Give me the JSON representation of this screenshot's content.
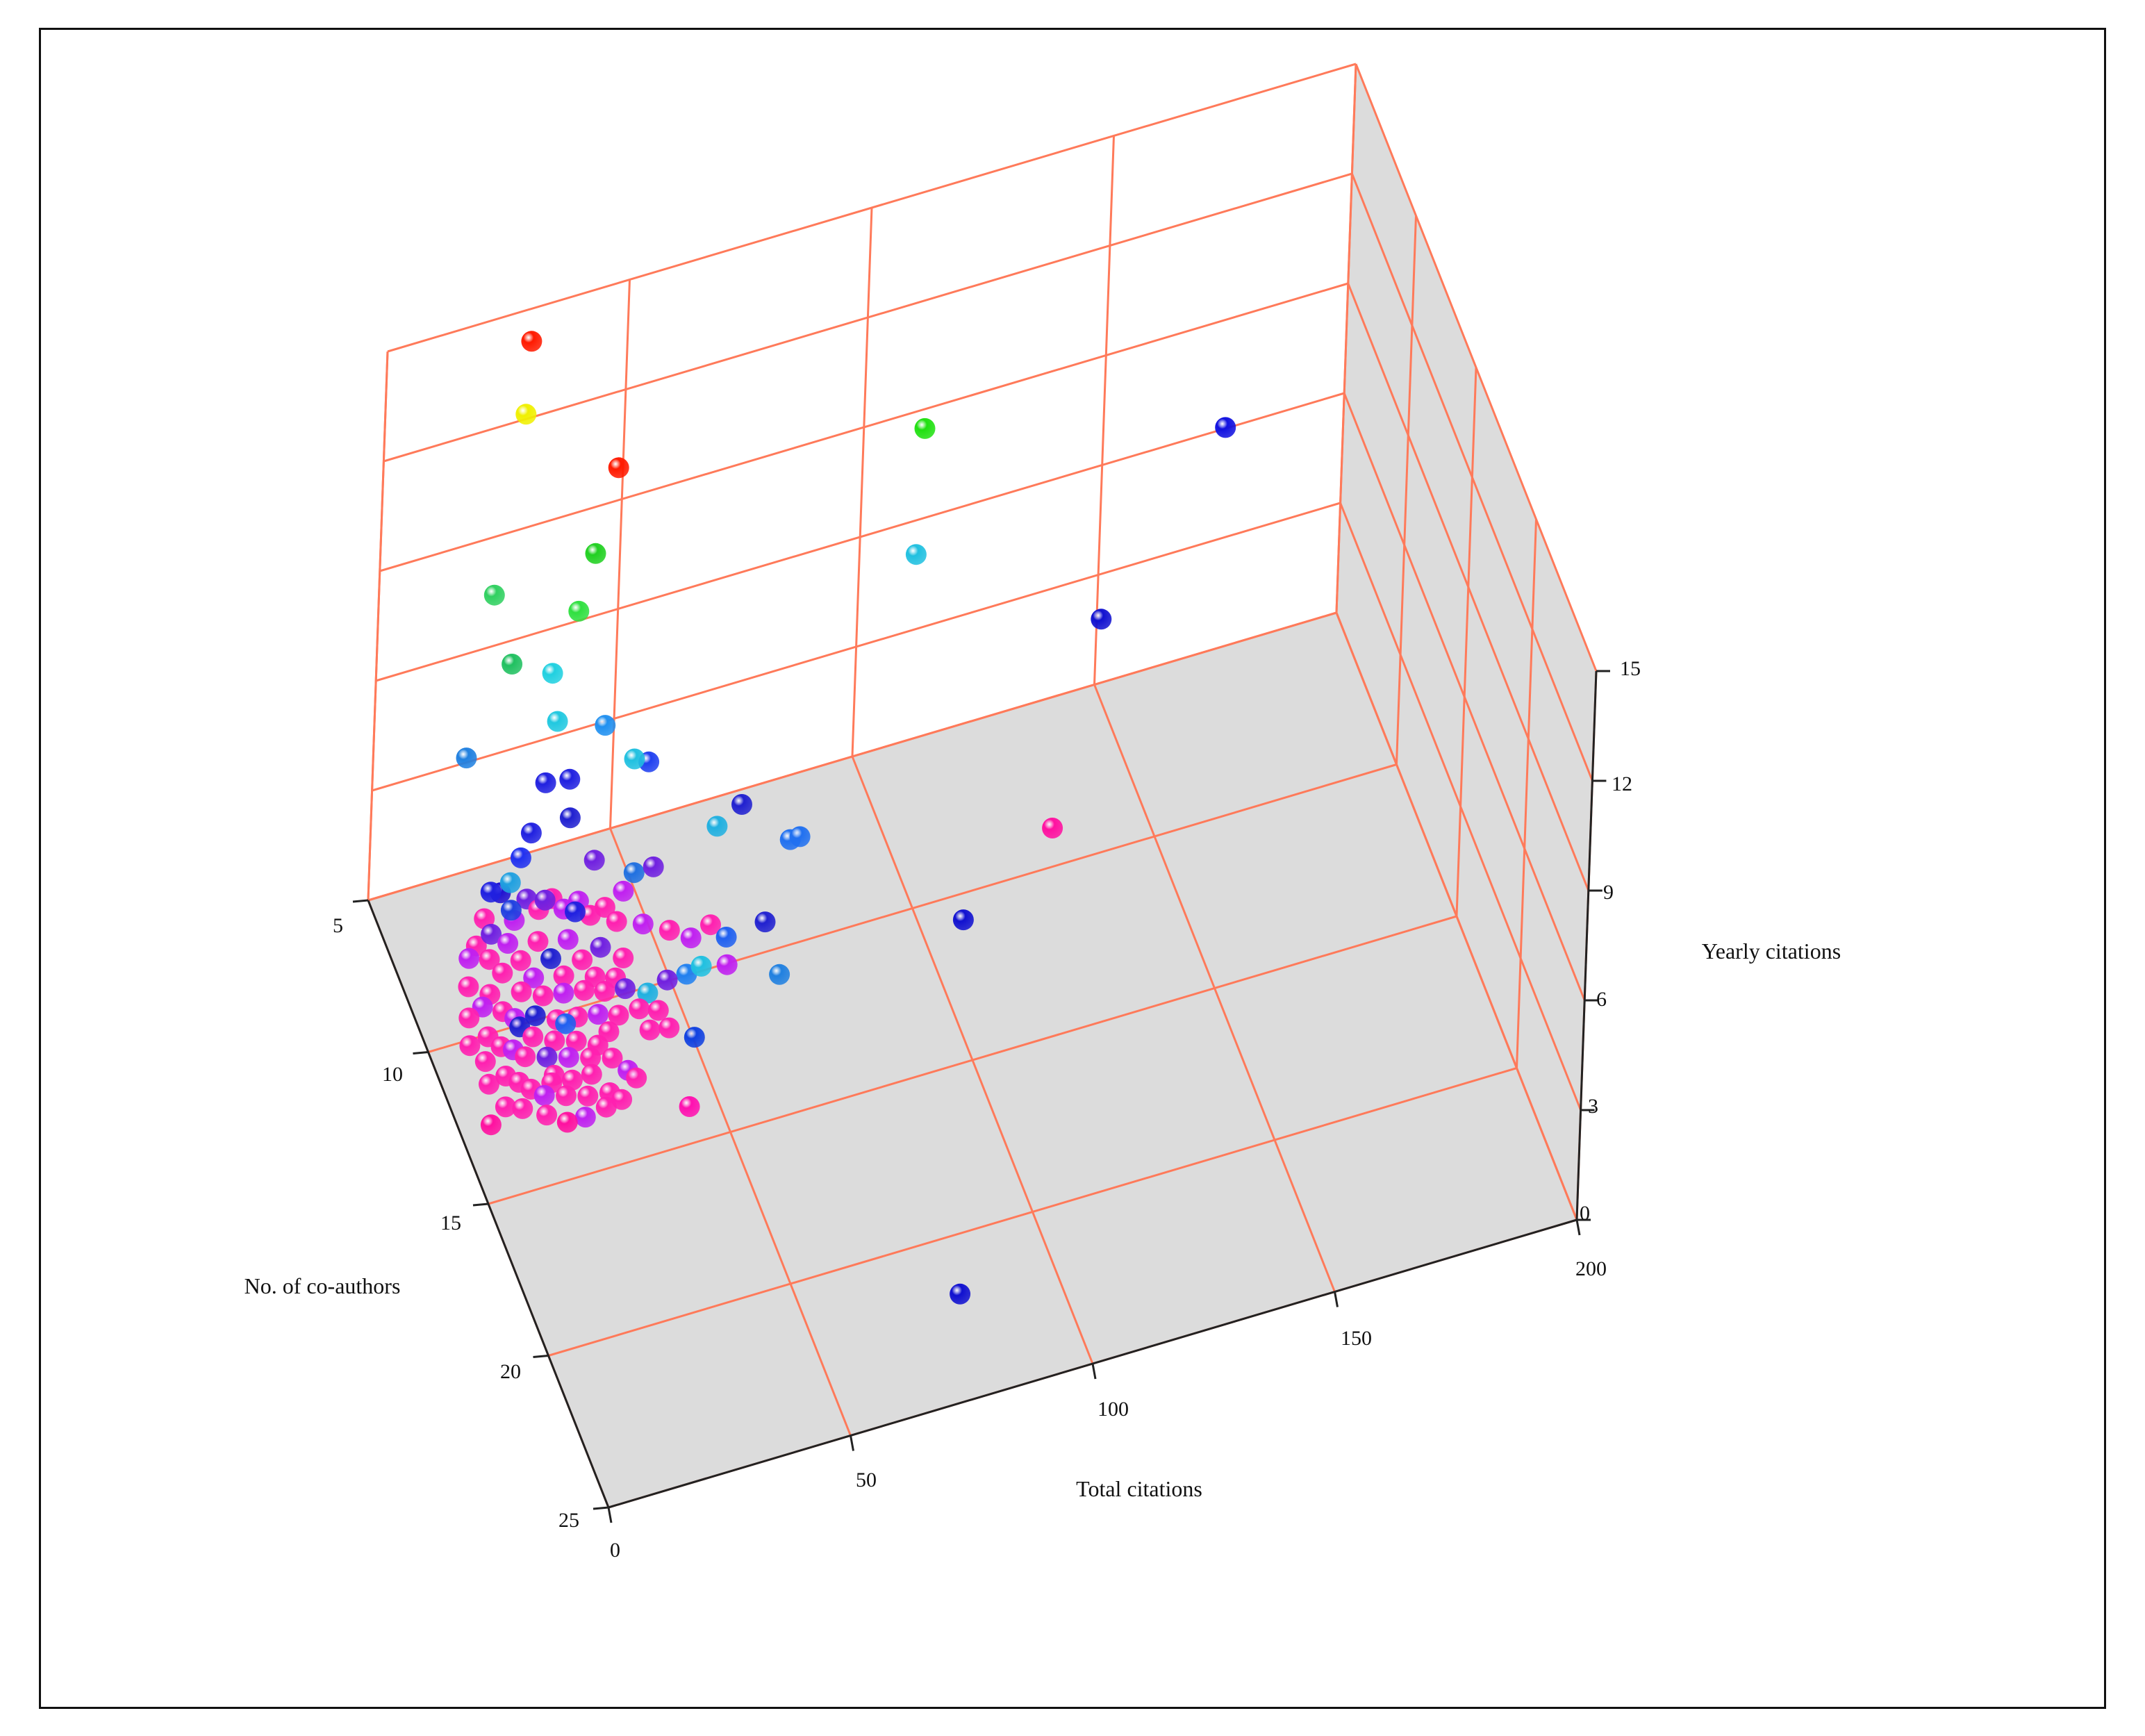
{
  "chart_data": {
    "type": "scatter3d",
    "title": "",
    "xlabel": "Total citations",
    "ylabel": "No. of co-authors",
    "zlabel": "Yearly citations",
    "xlim": [
      0,
      200
    ],
    "ylim": [
      5,
      25
    ],
    "zlim": [
      0,
      15
    ],
    "x_ticks": [
      "0",
      "50",
      "100",
      "150",
      "200"
    ],
    "y_ticks": [
      "5",
      "10",
      "15",
      "20",
      "25"
    ],
    "z_ticks": [
      "0",
      "3",
      "6",
      "9",
      "12",
      "15"
    ],
    "color_scale": {
      "low": "#ff00c0",
      "high": "#ff0000",
      "description": "hue by yearly citations"
    },
    "points": [
      {
        "x": 30,
        "y": 5,
        "z": 14.1,
        "color": "#ff1a00"
      },
      {
        "x": 28,
        "y": 5.5,
        "z": 12.6,
        "color": "#f0f000"
      },
      {
        "x": 45,
        "y": 6.5,
        "z": 11.3,
        "color": "#ff1a00"
      },
      {
        "x": 110,
        "y": 6,
        "z": 9.4,
        "color": "#20e010"
      },
      {
        "x": 40,
        "y": 6.8,
        "z": 9.4,
        "color": "#20d020"
      },
      {
        "x": 20,
        "y": 6.5,
        "z": 8.8,
        "color": "#30d060"
      },
      {
        "x": 35,
        "y": 7.5,
        "z": 8.6,
        "color": "#30e040"
      },
      {
        "x": 22,
        "y": 7.3,
        "z": 7.5,
        "color": "#20c060"
      },
      {
        "x": 105,
        "y": 7.5,
        "z": 7.4,
        "color": "#20c0e0"
      },
      {
        "x": 170,
        "y": 7.0,
        "z": 7.9,
        "color": "#1010e0"
      },
      {
        "x": 30,
        "y": 7.5,
        "z": 7.1,
        "color": "#20d0e0"
      },
      {
        "x": 30,
        "y": 8,
        "z": 6.2,
        "color": "#20c8e0"
      },
      {
        "x": 40,
        "y": 8,
        "z": 5.7,
        "color": "#2090f0"
      },
      {
        "x": 45,
        "y": 8.5,
        "z": 5.0,
        "color": "#20c0e0"
      },
      {
        "x": 48,
        "y": 8.5,
        "z": 4.8,
        "color": "#2040f0"
      },
      {
        "x": 140,
        "y": 9,
        "z": 5.5,
        "color": "#1010d0"
      },
      {
        "x": 14,
        "y": 7,
        "z": 5.0,
        "color": "#2080e0"
      },
      {
        "x": 28,
        "y": 8,
        "z": 4.6,
        "color": "#2020e0"
      },
      {
        "x": 33,
        "y": 8,
        "z": 4.5,
        "color": "#2020e0"
      },
      {
        "x": 32,
        "y": 8.5,
        "z": 3.9,
        "color": "#2020d0"
      },
      {
        "x": 24,
        "y": 8.5,
        "z": 3.8,
        "color": "#2020e0"
      },
      {
        "x": 65,
        "y": 9.5,
        "z": 3.8,
        "color": "#2020d0"
      },
      {
        "x": 60,
        "y": 9.5,
        "z": 3.4,
        "color": "#20b0e0"
      },
      {
        "x": 22,
        "y": 8.5,
        "z": 3.2,
        "color": "#2030f0"
      },
      {
        "x": 36,
        "y": 9,
        "z": 3.0,
        "color": "#7020e0"
      },
      {
        "x": 43,
        "y": 9.5,
        "z": 2.8,
        "color": "#2070e0"
      },
      {
        "x": 47,
        "y": 9.5,
        "z": 2.8,
        "color": "#7020e0"
      },
      {
        "x": 20,
        "y": 8.5,
        "z": 2.6,
        "color": "#20a0e0"
      },
      {
        "x": 74,
        "y": 10,
        "z": 2.9,
        "color": "#2070f0"
      },
      {
        "x": 76,
        "y": 10,
        "z": 2.9,
        "color": "#2070f0"
      },
      {
        "x": 18,
        "y": 8.5,
        "z": 2.4,
        "color": "#2010d0"
      },
      {
        "x": 19,
        "y": 9,
        "z": 2.3,
        "color": "#2040e0"
      },
      {
        "x": 16,
        "y": 8.5,
        "z": 2.5,
        "color": "#2020e0"
      },
      {
        "x": 26,
        "y": 9,
        "z": 2.3,
        "color": "#7020e0"
      },
      {
        "x": 31,
        "y": 9.5,
        "z": 2.2,
        "color": "#2020e0"
      },
      {
        "x": 130,
        "y": 9.5,
        "z": 0.6,
        "color": "#ff10a0"
      },
      {
        "x": 58,
        "y": 10,
        "z": 1.2,
        "color": "#ff20b0"
      },
      {
        "x": 60,
        "y": 10.5,
        "z": 1.2,
        "color": "#2060f0"
      },
      {
        "x": 68,
        "y": 10.5,
        "z": 1.3,
        "color": "#2020d0"
      },
      {
        "x": 54,
        "y": 10,
        "z": 1.0,
        "color": "#c020f0"
      },
      {
        "x": 59,
        "y": 11,
        "z": 0.9,
        "color": "#c020f0"
      },
      {
        "x": 108,
        "y": 11,
        "z": 0.2,
        "color": "#1010d0"
      },
      {
        "x": 70,
        "y": 11,
        "z": 0.2,
        "color": "#2080e0"
      },
      {
        "x": 55,
        "y": 10.5,
        "z": 0.6,
        "color": "#20c0e0"
      },
      {
        "x": 52,
        "y": 10.5,
        "z": 0.5,
        "color": "#2080f0"
      },
      {
        "x": 48,
        "y": 10.5,
        "z": 0.5,
        "color": "#7020e0"
      },
      {
        "x": 44,
        "y": 10.5,
        "z": 0.3,
        "color": "#20b0e0"
      },
      {
        "x": 45,
        "y": 11,
        "z": 0.2,
        "color": "#ff20b0"
      },
      {
        "x": 46,
        "y": 11.5,
        "z": 0.1,
        "color": "#ff20b0"
      },
      {
        "x": 42,
        "y": 11.5,
        "z": 0.2,
        "color": "#ff20b0"
      },
      {
        "x": 50,
        "y": 12,
        "z": 0.1,
        "color": "#1040e0"
      },
      {
        "x": 35,
        "y": 12.5,
        "z": 0.2,
        "color": "#c020f0"
      },
      {
        "x": 36,
        "y": 12.8,
        "z": 0.2,
        "color": "#ff20b0"
      },
      {
        "x": 30,
        "y": 13,
        "z": 0.2,
        "color": "#ff20b0"
      },
      {
        "x": 28,
        "y": 13.5,
        "z": 0.3,
        "color": "#ff20b0"
      },
      {
        "x": 20,
        "y": 13.5,
        "z": 0.2,
        "color": "#ff10a0"
      },
      {
        "x": 44,
        "y": 14,
        "z": 0.1,
        "color": "#ff10b0"
      },
      {
        "x": 80,
        "y": 22,
        "z": 0.2,
        "color": "#1010d0"
      },
      {
        "x": 12,
        "y": 9,
        "z": 1.6,
        "color": "#ff20b0"
      },
      {
        "x": 14,
        "y": 9.3,
        "z": 1.4,
        "color": "#ff20b0"
      },
      {
        "x": 16,
        "y": 9.6,
        "z": 1.2,
        "color": "#ff20b0"
      },
      {
        "x": 18,
        "y": 9.2,
        "z": 1.6,
        "color": "#c020f0"
      },
      {
        "x": 20,
        "y": 9.5,
        "z": 1.3,
        "color": "#ff20b0"
      },
      {
        "x": 22,
        "y": 9.8,
        "z": 1.0,
        "color": "#c020f0"
      },
      {
        "x": 24,
        "y": 9.3,
        "z": 1.5,
        "color": "#ff20b0"
      },
      {
        "x": 26,
        "y": 9.6,
        "z": 1.2,
        "color": "#2020d0"
      },
      {
        "x": 28,
        "y": 9.9,
        "z": 0.9,
        "color": "#ff20b0"
      },
      {
        "x": 30,
        "y": 9.4,
        "z": 1.4,
        "color": "#c020f0"
      },
      {
        "x": 32,
        "y": 9.8,
        "z": 1.1,
        "color": "#ff20b0"
      },
      {
        "x": 34,
        "y": 10.1,
        "z": 0.8,
        "color": "#ff20b0"
      },
      {
        "x": 36,
        "y": 9.7,
        "z": 1.2,
        "color": "#7020e0"
      },
      {
        "x": 38,
        "y": 10.2,
        "z": 0.7,
        "color": "#ff20b0"
      },
      {
        "x": 40,
        "y": 10,
        "z": 1.0,
        "color": "#ff20b0"
      },
      {
        "x": 13,
        "y": 9.8,
        "z": 0.9,
        "color": "#ff20b0"
      },
      {
        "x": 15,
        "y": 10.1,
        "z": 0.6,
        "color": "#ff20b0"
      },
      {
        "x": 17,
        "y": 10.3,
        "z": 0.5,
        "color": "#c020f0"
      },
      {
        "x": 19,
        "y": 10.0,
        "z": 0.9,
        "color": "#ff20b0"
      },
      {
        "x": 21,
        "y": 10.4,
        "z": 0.5,
        "color": "#2020d0"
      },
      {
        "x": 23,
        "y": 10.2,
        "z": 0.8,
        "color": "#ff20b0"
      },
      {
        "x": 25,
        "y": 10.6,
        "z": 0.4,
        "color": "#ff20b0"
      },
      {
        "x": 27,
        "y": 10.3,
        "z": 0.8,
        "color": "#c020f0"
      },
      {
        "x": 29,
        "y": 10.7,
        "z": 0.4,
        "color": "#ff20b0"
      },
      {
        "x": 31,
        "y": 10.4,
        "z": 0.8,
        "color": "#ff20b0"
      },
      {
        "x": 33,
        "y": 10.8,
        "z": 0.4,
        "color": "#c020f0"
      },
      {
        "x": 35,
        "y": 10.5,
        "z": 0.7,
        "color": "#ff20b0"
      },
      {
        "x": 37,
        "y": 10.9,
        "z": 0.3,
        "color": "#ff20b0"
      },
      {
        "x": 39,
        "y": 10.6,
        "z": 0.7,
        "color": "#7020e0"
      },
      {
        "x": 41,
        "y": 11.0,
        "z": 0.4,
        "color": "#ff20b0"
      },
      {
        "x": 11,
        "y": 10.5,
        "z": 0.4,
        "color": "#ff20b0"
      },
      {
        "x": 13,
        "y": 10.8,
        "z": 0.3,
        "color": "#ff20b0"
      },
      {
        "x": 15,
        "y": 11.0,
        "z": 0.3,
        "color": "#c020f0"
      },
      {
        "x": 17,
        "y": 11.2,
        "z": 0.2,
        "color": "#ff20b0"
      },
      {
        "x": 19,
        "y": 11.0,
        "z": 0.5,
        "color": "#ff20b0"
      },
      {
        "x": 21,
        "y": 11.4,
        "z": 0.2,
        "color": "#7020e0"
      },
      {
        "x": 23,
        "y": 11.2,
        "z": 0.4,
        "color": "#ff20b0"
      },
      {
        "x": 25,
        "y": 11.6,
        "z": 0.2,
        "color": "#c020f0"
      },
      {
        "x": 27,
        "y": 11.4,
        "z": 0.4,
        "color": "#ff20b0"
      },
      {
        "x": 29,
        "y": 11.8,
        "z": 0.2,
        "color": "#ff20b0"
      },
      {
        "x": 31,
        "y": 11.6,
        "z": 0.3,
        "color": "#ff20b0"
      },
      {
        "x": 33,
        "y": 12.0,
        "z": 0.2,
        "color": "#ff20b0"
      },
      {
        "x": 12,
        "y": 11.6,
        "z": 0.2,
        "color": "#ff20b0"
      },
      {
        "x": 14,
        "y": 11.9,
        "z": 0.2,
        "color": "#ff20b0"
      },
      {
        "x": 16,
        "y": 12.1,
        "z": 0.1,
        "color": "#ff20b0"
      },
      {
        "x": 18,
        "y": 12.4,
        "z": 0.1,
        "color": "#c020f0"
      },
      {
        "x": 20,
        "y": 12.2,
        "z": 0.2,
        "color": "#ff20b0"
      },
      {
        "x": 22,
        "y": 12.6,
        "z": 0.1,
        "color": "#ff20b0"
      },
      {
        "x": 24,
        "y": 12.3,
        "z": 0.2,
        "color": "#ff20b0"
      },
      {
        "x": 26,
        "y": 12.8,
        "z": 0.1,
        "color": "#ff20b0"
      },
      {
        "x": 10,
        "y": 12.4,
        "z": 0.1,
        "color": "#ff20b0"
      },
      {
        "x": 8,
        "y": 11.8,
        "z": 0.3,
        "color": "#ff20b0"
      },
      {
        "x": 6,
        "y": 12.8,
        "z": 0.1,
        "color": "#ff10a0"
      },
      {
        "x": 10,
        "y": 9.2,
        "z": 1.5,
        "color": "#c020f0"
      },
      {
        "x": 9,
        "y": 9.6,
        "z": 1.1,
        "color": "#ff20b0"
      },
      {
        "x": 8,
        "y": 10.1,
        "z": 0.7,
        "color": "#ff20b0"
      },
      {
        "x": 7,
        "y": 10.6,
        "z": 0.4,
        "color": "#ff20b0"
      },
      {
        "x": 11,
        "y": 10.0,
        "z": 0.8,
        "color": "#c020f0"
      },
      {
        "x": 9,
        "y": 11.1,
        "z": 0.3,
        "color": "#ff20b0"
      },
      {
        "x": 15,
        "y": 9.0,
        "z": 1.8,
        "color": "#7020e0"
      },
      {
        "x": 20,
        "y": 8.9,
        "z": 1.9,
        "color": "#c020f0"
      },
      {
        "x": 25,
        "y": 8.9,
        "z": 2.0,
        "color": "#ff20b0"
      },
      {
        "x": 30,
        "y": 9.0,
        "z": 1.9,
        "color": "#c020f0"
      },
      {
        "x": 35,
        "y": 9.2,
        "z": 1.7,
        "color": "#ff20b0"
      },
      {
        "x": 40,
        "y": 9.4,
        "z": 1.5,
        "color": "#ff20b0"
      },
      {
        "x": 45,
        "y": 9.6,
        "z": 1.4,
        "color": "#c020f0"
      },
      {
        "x": 50,
        "y": 9.8,
        "z": 1.2,
        "color": "#ff20b0"
      },
      {
        "x": 14,
        "y": 8.8,
        "z": 2.1,
        "color": "#ff20b0"
      },
      {
        "x": 23,
        "y": 8.7,
        "z": 2.2,
        "color": "#7020e0"
      },
      {
        "x": 28,
        "y": 8.8,
        "z": 2.1,
        "color": "#ff20b0"
      },
      {
        "x": 33,
        "y": 9.0,
        "z": 2.0,
        "color": "#c020f0"
      },
      {
        "x": 38,
        "y": 9.2,
        "z": 1.8,
        "color": "#ff20b0"
      },
      {
        "x": 42,
        "y": 9.1,
        "z": 2.0,
        "color": "#c020f0"
      },
      {
        "x": 17,
        "y": 10.7,
        "z": 0.6,
        "color": "#2020d0"
      },
      {
        "x": 26,
        "y": 10.9,
        "z": 0.5,
        "color": "#2060f0"
      },
      {
        "x": 34,
        "y": 11.3,
        "z": 0.3,
        "color": "#ff20b0"
      },
      {
        "x": 21,
        "y": 12.0,
        "z": 0.2,
        "color": "#ff20b0"
      },
      {
        "x": 28,
        "y": 12.3,
        "z": 0.2,
        "color": "#ff20b0"
      },
      {
        "x": 13,
        "y": 12.6,
        "z": 0.1,
        "color": "#ff20b0"
      },
      {
        "x": 17,
        "y": 13.0,
        "z": 0.1,
        "color": "#ff20b0"
      },
      {
        "x": 32,
        "y": 13.2,
        "z": 0.1,
        "color": "#ff20b0"
      },
      {
        "x": 24,
        "y": 13.4,
        "z": 0.1,
        "color": "#c020f0"
      }
    ]
  }
}
